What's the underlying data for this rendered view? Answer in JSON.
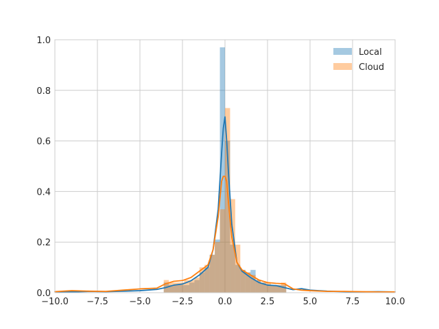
{
  "chart_data": {
    "type": "bar",
    "title": "",
    "xlabel": "",
    "ylabel": "",
    "xlim": [
      -10,
      10
    ],
    "ylim": [
      0,
      1.0
    ],
    "xticks": [
      -10,
      -7.5,
      -5,
      -2.5,
      0,
      2.5,
      5,
      7.5,
      10
    ],
    "xtick_labels": [
      "−10.0",
      "−7.5",
      "−5.0",
      "−2.5",
      "0.0",
      "2.5",
      "5.0",
      "7.5",
      "10.0"
    ],
    "yticks": [
      0,
      0.2,
      0.4,
      0.6,
      0.8,
      1.0
    ],
    "ytick_labels": [
      "0.0",
      "0.2",
      "0.4",
      "0.6",
      "0.8",
      "1.0"
    ],
    "grid": true,
    "legend_position": "top-right",
    "series": [
      {
        "name": "Local",
        "color": "#1f77b4",
        "histogram": [
          {
            "x0": -3.6,
            "x1": -3.3,
            "y": 0.04
          },
          {
            "x0": -3.3,
            "x1": -3.0,
            "y": 0.03
          },
          {
            "x0": -3.0,
            "x1": -2.7,
            "y": 0.03
          },
          {
            "x0": -2.7,
            "x1": -2.4,
            "y": 0.03
          },
          {
            "x0": -2.4,
            "x1": -2.1,
            "y": 0.03
          },
          {
            "x0": -2.1,
            "x1": -1.8,
            "y": 0.04
          },
          {
            "x0": -1.8,
            "x1": -1.5,
            "y": 0.05
          },
          {
            "x0": -1.5,
            "x1": -1.2,
            "y": 0.08
          },
          {
            "x0": -1.2,
            "x1": -0.9,
            "y": 0.1
          },
          {
            "x0": -0.9,
            "x1": -0.6,
            "y": 0.15
          },
          {
            "x0": -0.6,
            "x1": -0.3,
            "y": 0.21
          },
          {
            "x0": -0.3,
            "x1": 0.0,
            "y": 0.97
          },
          {
            "x0": 0.0,
            "x1": 0.3,
            "y": 0.6
          },
          {
            "x0": 0.3,
            "x1": 0.6,
            "y": 0.19
          },
          {
            "x0": 0.6,
            "x1": 0.9,
            "y": 0.11
          },
          {
            "x0": 0.9,
            "x1": 1.2,
            "y": 0.09
          },
          {
            "x0": 1.2,
            "x1": 1.5,
            "y": 0.08
          },
          {
            "x0": 1.5,
            "x1": 1.8,
            "y": 0.09
          },
          {
            "x0": 1.8,
            "x1": 2.1,
            "y": 0.05
          },
          {
            "x0": 2.1,
            "x1": 2.4,
            "y": 0.04
          },
          {
            "x0": 2.4,
            "x1": 2.7,
            "y": 0.03
          },
          {
            "x0": 2.7,
            "x1": 3.0,
            "y": 0.03
          },
          {
            "x0": 3.0,
            "x1": 3.3,
            "y": 0.03
          },
          {
            "x0": 3.3,
            "x1": 3.6,
            "y": 0.03
          }
        ],
        "kde_x": [
          -10,
          -9,
          -8,
          -7,
          -6,
          -5,
          -4,
          -3.5,
          -3,
          -2.5,
          -2,
          -1.5,
          -1,
          -0.7,
          -0.4,
          -0.2,
          -0.1,
          0,
          0.1,
          0.2,
          0.4,
          0.7,
          1,
          1.5,
          2,
          2.5,
          3,
          3.5,
          4,
          4.5,
          5,
          6,
          7,
          8,
          9,
          10
        ],
        "kde_y": [
          0.004,
          0.003,
          0.005,
          0.004,
          0.006,
          0.008,
          0.013,
          0.02,
          0.03,
          0.034,
          0.047,
          0.07,
          0.1,
          0.17,
          0.33,
          0.55,
          0.65,
          0.695,
          0.6,
          0.48,
          0.27,
          0.12,
          0.085,
          0.06,
          0.04,
          0.03,
          0.028,
          0.02,
          0.012,
          0.016,
          0.01,
          0.006,
          0.004,
          0.003,
          0.004,
          0.003
        ]
      },
      {
        "name": "Cloud",
        "color": "#ff7f0e",
        "histogram": [
          {
            "x0": -3.6,
            "x1": -3.3,
            "y": 0.05
          },
          {
            "x0": -3.3,
            "x1": -3.0,
            "y": 0.04
          },
          {
            "x0": -3.0,
            "x1": -2.7,
            "y": 0.04
          },
          {
            "x0": -2.7,
            "x1": -2.4,
            "y": 0.04
          },
          {
            "x0": -2.4,
            "x1": -2.1,
            "y": 0.05
          },
          {
            "x0": -2.1,
            "x1": -1.8,
            "y": 0.05
          },
          {
            "x0": -1.8,
            "x1": -1.5,
            "y": 0.06
          },
          {
            "x0": -1.5,
            "x1": -1.2,
            "y": 0.1
          },
          {
            "x0": -1.2,
            "x1": -0.9,
            "y": 0.11
          },
          {
            "x0": -0.9,
            "x1": -0.6,
            "y": 0.15
          },
          {
            "x0": -0.6,
            "x1": -0.3,
            "y": 0.2
          },
          {
            "x0": -0.3,
            "x1": 0.0,
            "y": 0.33
          },
          {
            "x0": 0.0,
            "x1": 0.3,
            "y": 0.73
          },
          {
            "x0": 0.3,
            "x1": 0.6,
            "y": 0.37
          },
          {
            "x0": 0.6,
            "x1": 0.9,
            "y": 0.19
          },
          {
            "x0": 0.9,
            "x1": 1.2,
            "y": 0.09
          },
          {
            "x0": 1.2,
            "x1": 1.5,
            "y": 0.08
          },
          {
            "x0": 1.5,
            "x1": 1.8,
            "y": 0.07
          },
          {
            "x0": 1.8,
            "x1": 2.1,
            "y": 0.05
          },
          {
            "x0": 2.1,
            "x1": 2.4,
            "y": 0.04
          },
          {
            "x0": 2.4,
            "x1": 2.7,
            "y": 0.04
          },
          {
            "x0": 2.7,
            "x1": 3.0,
            "y": 0.03
          },
          {
            "x0": 3.0,
            "x1": 3.3,
            "y": 0.03
          },
          {
            "x0": 3.3,
            "x1": 3.6,
            "y": 0.04
          }
        ],
        "kde_x": [
          -10,
          -9,
          -8,
          -7,
          -6,
          -5,
          -4,
          -3.5,
          -3,
          -2.5,
          -2,
          -1.5,
          -1,
          -0.7,
          -0.4,
          -0.2,
          -0.1,
          0,
          0.1,
          0.2,
          0.4,
          0.7,
          1,
          1.5,
          2,
          2.5,
          3,
          3.5,
          4,
          4.5,
          5,
          6,
          7,
          8,
          9,
          10
        ],
        "kde_y": [
          0.004,
          0.008,
          0.006,
          0.005,
          0.01,
          0.015,
          0.018,
          0.035,
          0.045,
          0.048,
          0.06,
          0.085,
          0.11,
          0.17,
          0.3,
          0.44,
          0.46,
          0.46,
          0.44,
          0.36,
          0.22,
          0.12,
          0.09,
          0.07,
          0.05,
          0.04,
          0.037,
          0.035,
          0.015,
          0.01,
          0.008,
          0.005,
          0.005,
          0.004,
          0.003,
          0.003
        ]
      }
    ]
  }
}
